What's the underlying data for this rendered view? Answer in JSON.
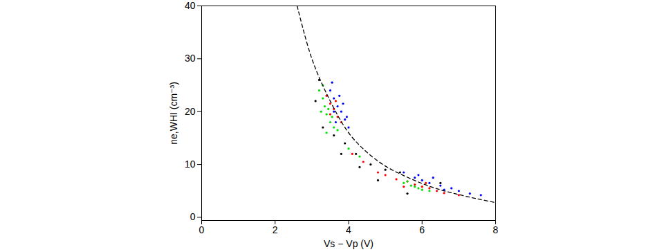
{
  "chart_data": {
    "type": "scatter",
    "x_label": "Vs − Vp (V)",
    "y_label": "ne,WHI (cm⁻³)",
    "xlim": [
      0,
      8
    ],
    "ylim": [
      -0.6,
      40
    ],
    "xticks": [
      0,
      2,
      4,
      6,
      8
    ],
    "yticks": [
      0,
      10,
      20,
      30,
      40
    ],
    "series": [
      {
        "color": "blue",
        "marker": "dot",
        "x": [
          3.5,
          3.6,
          3.7,
          3.8,
          3.9,
          3.6,
          3.75,
          3.85,
          4.0,
          3.65,
          3.55,
          3.95,
          5.5,
          5.8,
          6.0,
          6.2,
          6.5,
          6.8,
          7.0,
          7.3,
          6.3,
          5.9,
          7.6,
          6.6
        ],
        "values": [
          24,
          22.5,
          21,
          20,
          18.5,
          20,
          23,
          21.5,
          17,
          18,
          25.5,
          19,
          8.5,
          7.5,
          7,
          6.5,
          6,
          5.5,
          5,
          4.5,
          7.5,
          8,
          4.2,
          5.2
        ]
      },
      {
        "color": "red",
        "marker": "dot",
        "x": [
          3.4,
          3.5,
          3.6,
          3.7,
          3.5,
          3.65,
          3.8,
          4.1,
          4.4,
          5.0,
          5.3,
          5.6,
          5.8,
          6.0,
          6.2,
          6.4,
          6.6,
          5.5,
          6.1,
          4.8,
          7.0
        ],
        "values": [
          23,
          21.5,
          20.5,
          19,
          19.5,
          22,
          18,
          12,
          10.5,
          8,
          7.2,
          6.8,
          6.2,
          5.8,
          5.5,
          5,
          4.6,
          5.8,
          6.5,
          8.5,
          4.2
        ]
      },
      {
        "color": "#00e000",
        "marker": "dot",
        "x": [
          3.2,
          3.3,
          3.35,
          3.4,
          3.5,
          3.45,
          3.6,
          3.3,
          3.7,
          3.55,
          3.25,
          3.4,
          5.5,
          5.7,
          5.9,
          6.0,
          5.8,
          6.2,
          5.6,
          4.3,
          4.0
        ],
        "values": [
          24,
          22.5,
          21,
          19.5,
          18,
          20.5,
          17,
          25,
          16.5,
          19,
          20,
          16,
          6.5,
          6,
          5.5,
          5.2,
          5.8,
          5,
          6.8,
          11.5,
          13
        ]
      },
      {
        "color": "black",
        "marker": "dot",
        "x": [
          3.1,
          3.3,
          3.6,
          3.9,
          4.2,
          4.6,
          5.0,
          4.8,
          5.4,
          5.6,
          3.2,
          4.3,
          6.5,
          3.8
        ],
        "values": [
          22,
          17,
          15.5,
          14,
          12,
          10,
          9,
          7,
          8.5,
          4.5,
          26,
          9.5,
          6.5,
          12
        ]
      },
      {
        "type": "line",
        "line_style": "dashed",
        "color": "black",
        "x": [
          2.6,
          3.0,
          3.5,
          4.0,
          4.5,
          5.0,
          5.5,
          6.0,
          6.5,
          7.0,
          7.5,
          8.0
        ],
        "values": [
          40,
          30,
          22,
          16,
          12.3,
          9.7,
          7.9,
          6.4,
          5.2,
          4.3,
          3.5,
          2.8
        ]
      }
    ]
  }
}
